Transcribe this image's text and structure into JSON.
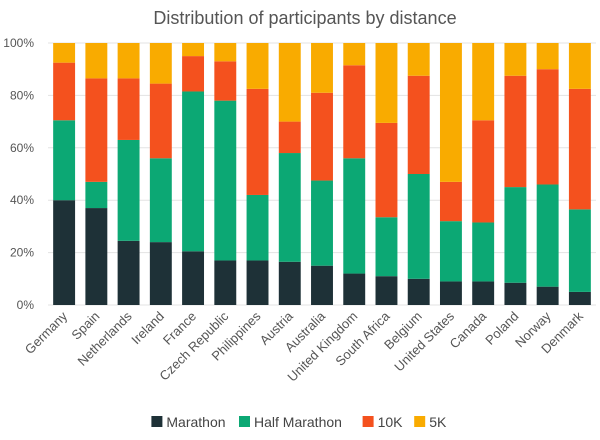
{
  "chart_data": {
    "type": "stacked_bar",
    "title": "Distribution of participants by distance",
    "categories": [
      "Germany",
      "Spain",
      "Netherlands",
      "Ireland",
      "France",
      "Czech Republic",
      "Philippines",
      "Austria",
      "Australia",
      "United Kingdom",
      "South Africa",
      "Belgium",
      "United States",
      "Canada",
      "Poland",
      "Norway",
      "Denmark"
    ],
    "series": [
      {
        "name": "Marathon",
        "color": "#1e3137",
        "values": [
          40,
          37,
          24.5,
          24,
          20.5,
          17,
          17,
          16.5,
          15,
          12,
          11,
          10,
          9,
          9,
          8.5,
          7,
          5
        ]
      },
      {
        "name": "Half Marathon",
        "color": "#0ca874",
        "values": [
          30.5,
          10,
          38.5,
          32,
          61,
          61,
          25,
          41.5,
          32.5,
          44,
          22.5,
          40,
          23,
          22.5,
          36.5,
          39,
          31.5
        ]
      },
      {
        "name": "10K",
        "color": "#f4511e",
        "values": [
          22,
          39.5,
          23.5,
          28.5,
          13.5,
          15,
          40.5,
          12,
          33.5,
          35.5,
          36,
          37.5,
          15,
          39,
          42.5,
          44,
          46
        ]
      },
      {
        "name": "5K",
        "color": "#f9ab00",
        "values": [
          7.5,
          13.5,
          13.5,
          15.5,
          5,
          7,
          17.5,
          30,
          19,
          8.5,
          30.5,
          12.5,
          53,
          29.5,
          12.5,
          10,
          17.5
        ]
      }
    ],
    "ylim": [
      0,
      100
    ],
    "yticks": [
      {
        "value": 0,
        "label": "0%"
      },
      {
        "value": 20,
        "label": "20%"
      },
      {
        "value": 40,
        "label": "40%"
      },
      {
        "value": 60,
        "label": "60%"
      },
      {
        "value": 80,
        "label": "80%"
      },
      {
        "value": 100,
        "label": "100%"
      }
    ],
    "grid": true
  }
}
